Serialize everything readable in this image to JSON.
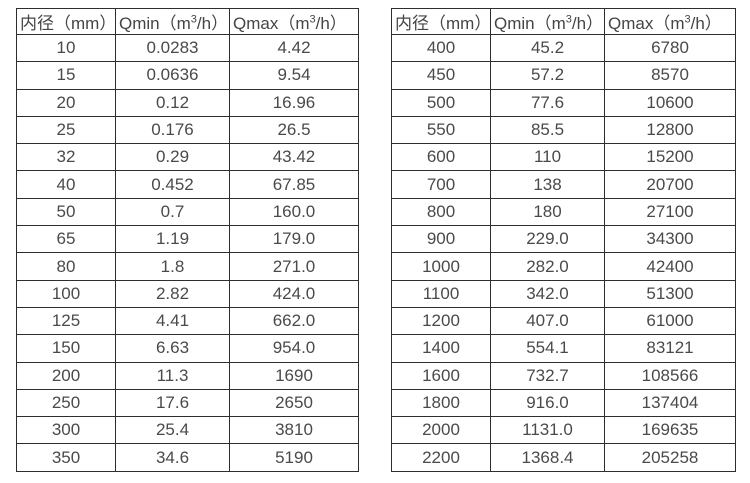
{
  "colors": {
    "background": "#ffffff",
    "border": "#2e2e2e",
    "text": "#4a4a4a"
  },
  "chart_data": [
    {
      "type": "table",
      "name": "flow-range-small-diameters",
      "columns": [
        "内径（mm）",
        "Qmin（m³/h）",
        "Qmax（m³/h）"
      ],
      "rows": [
        [
          "10",
          "0.0283",
          "4.42"
        ],
        [
          "15",
          "0.0636",
          "9.54"
        ],
        [
          "20",
          "0.12",
          "16.96"
        ],
        [
          "25",
          "0.176",
          "26.5"
        ],
        [
          "32",
          "0.29",
          "43.42"
        ],
        [
          "40",
          "0.452",
          "67.85"
        ],
        [
          "50",
          "0.7",
          "160.0"
        ],
        [
          "65",
          "1.19",
          "179.0"
        ],
        [
          "80",
          "1.8",
          "271.0"
        ],
        [
          "100",
          "2.82",
          "424.0"
        ],
        [
          "125",
          "4.41",
          "662.0"
        ],
        [
          "150",
          "6.63",
          "954.0"
        ],
        [
          "200",
          "11.3",
          "1690"
        ],
        [
          "250",
          "17.6",
          "2650"
        ],
        [
          "300",
          "25.4",
          "3810"
        ],
        [
          "350",
          "34.6",
          "5190"
        ]
      ]
    },
    {
      "type": "table",
      "name": "flow-range-large-diameters",
      "columns": [
        "内径（mm）",
        "Qmin（m³/h）",
        "Qmax（m³/h）"
      ],
      "rows": [
        [
          "400",
          "45.2",
          "6780"
        ],
        [
          "450",
          "57.2",
          "8570"
        ],
        [
          "500",
          "77.6",
          "10600"
        ],
        [
          "550",
          "85.5",
          "12800"
        ],
        [
          "600",
          "110",
          "15200"
        ],
        [
          "700",
          "138",
          "20700"
        ],
        [
          "800",
          "180",
          "27100"
        ],
        [
          "900",
          "229.0",
          "34300"
        ],
        [
          "1000",
          "282.0",
          "42400"
        ],
        [
          "1100",
          "342.0",
          "51300"
        ],
        [
          "1200",
          "407.0",
          "61000"
        ],
        [
          "1400",
          "554.1",
          "83121"
        ],
        [
          "1600",
          "732.7",
          "108566"
        ],
        [
          "1800",
          "916.0",
          "137404"
        ],
        [
          "2000",
          "1131.0",
          "169635"
        ],
        [
          "2200",
          "1368.4",
          "205258"
        ]
      ]
    }
  ]
}
